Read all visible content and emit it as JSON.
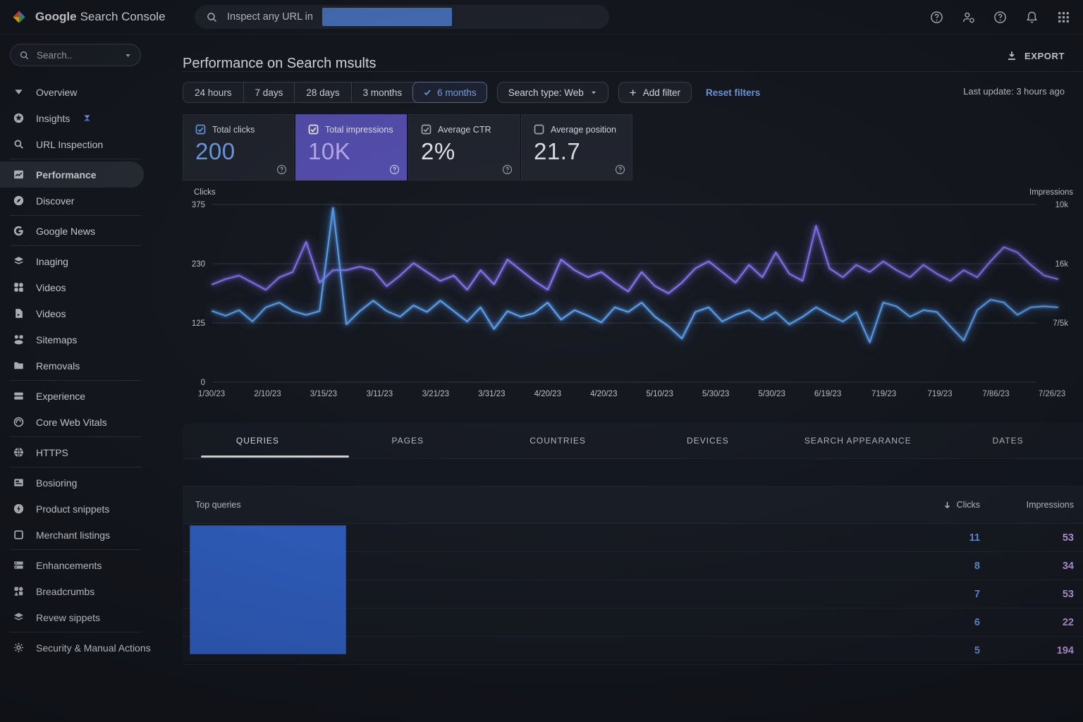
{
  "colors": {
    "accent_blue": "#67a2f7",
    "accent_purple": "#8471f3",
    "selected_card_bg": "#5751b6",
    "redaction_blue": "#3468d4",
    "link_blue": "#6ea4f3",
    "clicks_value": "#73a6f7",
    "impressions_value": "#c3b3fb"
  },
  "header": {
    "brand_bold": "Google",
    "brand_rest": "Search Console",
    "search_placeholder": "Inspect any URL in",
    "icons": [
      "help-icon",
      "account-add-icon",
      "help-icon",
      "notifications-icon",
      "apps-grid-icon"
    ]
  },
  "sidebar": {
    "search_placeholder": "Search..",
    "items": [
      {
        "label": "Overview",
        "icon": "overview-triangle-icon"
      },
      {
        "label": "Insights",
        "icon": "insights-star-icon",
        "spark": true
      },
      {
        "label": "URL Inspection",
        "icon": "url-inspection-icon"
      },
      {
        "divider": true
      },
      {
        "label": "Performance",
        "icon": "performance-icon",
        "selected": true
      },
      {
        "label": "Discover",
        "icon": "discover-icon"
      },
      {
        "divider": true
      },
      {
        "label": "Google News",
        "icon": "google-news-icon"
      },
      {
        "divider": true
      },
      {
        "label": "Inaging",
        "icon": "images-icon"
      },
      {
        "label": "Videos",
        "icon": "videos-grid-icon"
      },
      {
        "label": "Videos",
        "icon": "videos-page-icon"
      },
      {
        "label": "Sitemaps",
        "icon": "sitemaps-icon"
      },
      {
        "label": "Removals",
        "icon": "removals-icon"
      },
      {
        "divider": true
      },
      {
        "label": "Experience",
        "icon": "experience-icon"
      },
      {
        "label": "Core Web Vitals",
        "icon": "core-web-vitals-icon"
      },
      {
        "divider": true
      },
      {
        "label": "HTTPS",
        "icon": "https-icon"
      },
      {
        "divider": true
      },
      {
        "label": "Bosioring",
        "icon": "shopping-icon"
      },
      {
        "label": "Product snippets",
        "icon": "product-snippets-icon"
      },
      {
        "label": "Merchant listings",
        "icon": "merchant-listings-icon"
      },
      {
        "divider": true
      },
      {
        "label": "Enhancements",
        "icon": "enhancements-icon"
      },
      {
        "label": "Breadcrumbs",
        "icon": "breadcrumbs-icon"
      },
      {
        "label": "Revew sippets",
        "icon": "review-snippets-icon"
      },
      {
        "divider": true
      },
      {
        "label": "Security & Manual Actions",
        "icon": "security-icon"
      }
    ]
  },
  "main": {
    "title": "Performance on Search msults",
    "export_label": "EXPORT"
  },
  "filters": {
    "time_ranges": [
      {
        "label": "24 hours"
      },
      {
        "label": "7 days"
      },
      {
        "label": "28 days"
      },
      {
        "label": "3 months"
      },
      {
        "label": "6 months",
        "selected": true
      }
    ],
    "search_type_label": "Search type: Web",
    "add_filter_plus": "+",
    "add_filter_label": "Add filter",
    "reset_label": "Reset filters",
    "last_update": "Last update: 3 hours ago"
  },
  "metrics": {
    "cards": [
      {
        "label": "Total clicks",
        "value": "200",
        "value_color": "#73a6f7",
        "checked": true,
        "checkbox_color": "#6fa3f7",
        "selected": false
      },
      {
        "label": "Total impressions",
        "value": "10K",
        "value_color": "#c3b3fb",
        "checked": true,
        "checkbox_color": "#ffffff",
        "selected": true
      },
      {
        "label": "Average CTR",
        "value": "2%",
        "value_color": "#edeff3",
        "checked": true,
        "checkbox_color": "#a9afb9",
        "selected": false
      },
      {
        "label": "Average position",
        "value": "21.7",
        "value_color": "#e3e6eb",
        "checked": false,
        "checkbox_color": "#a9afb9",
        "selected": false
      }
    ]
  },
  "chart_data": {
    "type": "line",
    "title": "",
    "grid": true,
    "legend_position": "none",
    "x_labels": [
      "1/30/23",
      "2/10/23",
      "3/15/23",
      "3/11/23",
      "3/21/23",
      "3/31/23",
      "4/20/23",
      "4/20/23",
      "5/10/23",
      "5/30/23",
      "5/30/23",
      "6/19/23",
      "719/23",
      "719/23",
      "7/86/23",
      "7/26/23"
    ],
    "left_axis": {
      "label": "Clicks",
      "ticks": [
        "375",
        "230",
        "125",
        "0"
      ],
      "range": [
        0,
        375
      ]
    },
    "right_axis": {
      "label": "Impressions",
      "ticks": [
        "10k",
        "16k",
        "7/5k"
      ]
    },
    "series": [
      {
        "name": "Clicks",
        "color": "#58a0f6",
        "axis_max": 375,
        "values": [
          150,
          140,
          152,
          128,
          158,
          168,
          150,
          142,
          150,
          368,
          122,
          150,
          172,
          150,
          138,
          162,
          148,
          172,
          150,
          128,
          158,
          112,
          150,
          138,
          146,
          168,
          132,
          152,
          140,
          126,
          158,
          148,
          168,
          138,
          118,
          92,
          148,
          158,
          128,
          142,
          152,
          132,
          148,
          122,
          138,
          158,
          142,
          128,
          148,
          84,
          168,
          160,
          138,
          152,
          148,
          118,
          88,
          152,
          174,
          168,
          142,
          158,
          160,
          158
        ]
      },
      {
        "name": "Impressions",
        "color": "#8471f3",
        "axis_max": 10,
        "unit": "k",
        "values": [
          5.5,
          5.8,
          6.0,
          5.6,
          5.2,
          5.9,
          6.2,
          7.9,
          5.6,
          6.3,
          6.3,
          6.5,
          6.3,
          5.4,
          6.0,
          6.7,
          6.2,
          5.7,
          6.0,
          5.2,
          6.3,
          5.5,
          6.9,
          6.3,
          5.7,
          5.2,
          6.9,
          6.3,
          5.9,
          6.2,
          5.6,
          5.1,
          6.2,
          5.4,
          5.0,
          5.6,
          6.4,
          6.8,
          6.2,
          5.6,
          6.6,
          5.9,
          7.3,
          6.1,
          5.7,
          8.8,
          6.4,
          5.9,
          6.6,
          6.2,
          6.8,
          6.3,
          5.9,
          6.6,
          6.1,
          5.7,
          6.3,
          5.9,
          6.8,
          7.6,
          7.3,
          6.6,
          6.0,
          5.8
        ]
      }
    ]
  },
  "tabs": {
    "items": [
      {
        "label": "QUERIES",
        "active": true
      },
      {
        "label": "PAGES"
      },
      {
        "label": "COUNTRIES"
      },
      {
        "label": "DEVICES"
      },
      {
        "label": "SEARCH APPEARANCE"
      },
      {
        "label": "DATES"
      }
    ]
  },
  "table": {
    "title": "Top queries",
    "sort_col": "Clicks",
    "col2": "Impressions",
    "rows": [
      {
        "clicks": "11",
        "impressions": "53"
      },
      {
        "clicks": "8",
        "impressions": "34"
      },
      {
        "clicks": "7",
        "impressions": "53"
      },
      {
        "clicks": "6",
        "impressions": "22"
      },
      {
        "clicks": "5",
        "impressions": "194"
      }
    ]
  }
}
